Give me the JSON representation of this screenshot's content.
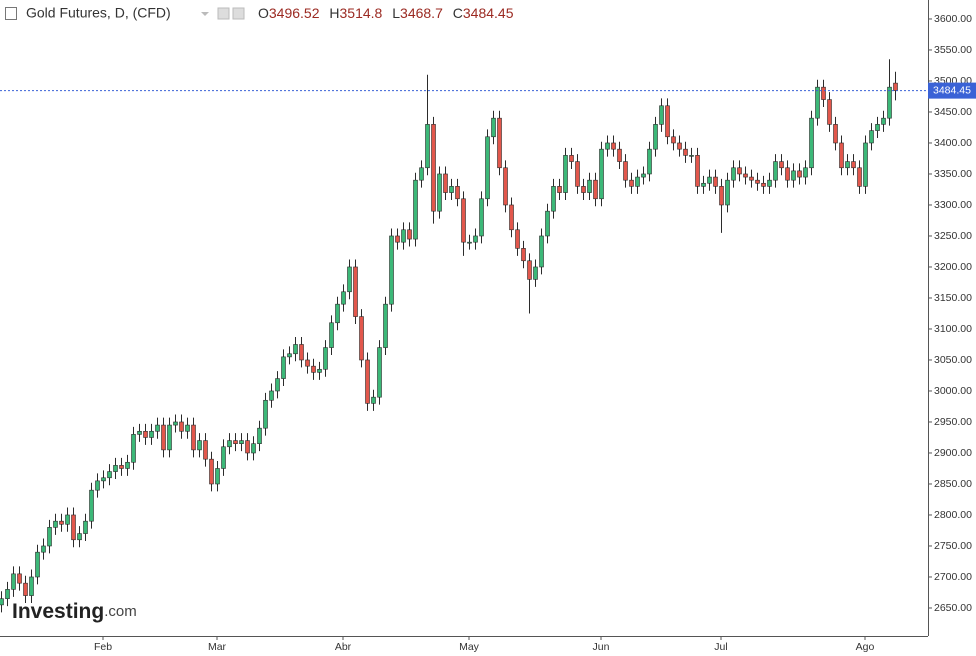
{
  "chart_data": {
    "type": "candlestick",
    "title": "Gold Futures, D, (CFD)",
    "ohlc_letters": [
      "O",
      "H",
      "L",
      "C"
    ],
    "categories": [
      null,
      null,
      null,
      null,
      null,
      null,
      null,
      null,
      null,
      null,
      null,
      null,
      null,
      null,
      null,
      null,
      null,
      "Feb",
      null,
      null,
      null,
      null,
      null,
      null,
      null,
      null,
      null,
      null,
      null,
      null,
      null,
      null,
      null,
      null,
      null,
      null,
      "Mar",
      null,
      null,
      null,
      null,
      null,
      null,
      null,
      null,
      null,
      null,
      null,
      null,
      null,
      null,
      null,
      null,
      null,
      null,
      null,
      null,
      "Abr",
      null,
      null,
      null,
      null,
      null,
      null,
      null,
      null,
      null,
      null,
      null,
      null,
      null,
      null,
      null,
      null,
      null,
      null,
      null,
      null,
      "May",
      null,
      null,
      null,
      null,
      null,
      null,
      null,
      null,
      null,
      null,
      null,
      null,
      null,
      null,
      null,
      null,
      null,
      null,
      null,
      null,
      null,
      "Jun",
      null,
      null,
      null,
      null,
      null,
      null,
      null,
      null,
      null,
      null,
      null,
      null,
      null,
      null,
      null,
      null,
      null,
      null,
      null,
      "Jul",
      null,
      null,
      null,
      null,
      null,
      null,
      null,
      null,
      null,
      null,
      null,
      null,
      null,
      null,
      null,
      null,
      null,
      null,
      null,
      null,
      null,
      null,
      null,
      "Ago",
      null,
      null,
      null,
      null,
      null
    ],
    "open": [
      2655,
      2665,
      2680,
      2705,
      2690,
      2670,
      2700,
      2740,
      2750,
      2780,
      2790,
      2785,
      2800,
      2760,
      2770,
      2790,
      2840,
      2855,
      2860,
      2870,
      2880,
      2875,
      2885,
      2930,
      2935,
      2925,
      2935,
      2945,
      2905,
      2945,
      2950,
      2935,
      2945,
      2905,
      2920,
      2890,
      2850,
      2875,
      2910,
      2920,
      2915,
      2920,
      2900,
      2915,
      2940,
      2985,
      3000,
      3020,
      3055,
      3060,
      3075,
      3050,
      3040,
      3030,
      3035,
      3070,
      3110,
      3140,
      3160,
      3200,
      3120,
      3050,
      2980,
      2990,
      3070,
      3140,
      3250,
      3240,
      3260,
      3245,
      3340,
      3360,
      3430,
      3290,
      3350,
      3320,
      3330,
      3310,
      3240,
      3240,
      3250,
      3310,
      3410,
      3440,
      3360,
      3300,
      3260,
      3230,
      3210,
      3180,
      3200,
      3250,
      3290,
      3330,
      3320,
      3380,
      3370,
      3330,
      3320,
      3340,
      3310,
      3390,
      3400,
      3390,
      3370,
      3340,
      3330,
      3345,
      3350,
      3390,
      3430,
      3460,
      3410,
      3400,
      3390,
      3380,
      3380,
      3330,
      3335,
      3345,
      3330,
      3300,
      3340,
      3360,
      3350,
      3345,
      3340,
      3335,
      3330,
      3340,
      3370,
      3360,
      3340,
      3355,
      3345,
      3360,
      3440,
      3490,
      3470,
      3430,
      3400,
      3360,
      3370,
      3360,
      3330,
      3400,
      3420,
      3430,
      3440,
      3496.52
    ],
    "high": [
      2677,
      2692,
      2717,
      2717,
      2702,
      2712,
      2752,
      2762,
      2792,
      2802,
      2802,
      2812,
      2812,
      2782,
      2802,
      2852,
      2867,
      2872,
      2882,
      2892,
      2892,
      2897,
      2942,
      2947,
      2947,
      2947,
      2957,
      2957,
      2957,
      2962,
      2962,
      2957,
      2957,
      2932,
      2932,
      2902,
      2887,
      2922,
      2932,
      2932,
      2932,
      2932,
      2927,
      2952,
      2997,
      3012,
      3032,
      3067,
      3072,
      3087,
      3087,
      3062,
      3052,
      3047,
      3082,
      3122,
      3152,
      3172,
      3212,
      3212,
      3132,
      3062,
      3002,
      3082,
      3152,
      3262,
      3262,
      3272,
      3272,
      3352,
      3372,
      3510,
      3442,
      3362,
      3362,
      3342,
      3342,
      3322,
      3252,
      3262,
      3322,
      3422,
      3452,
      3452,
      3372,
      3312,
      3272,
      3242,
      3222,
      3212,
      3262,
      3302,
      3342,
      3342,
      3392,
      3392,
      3382,
      3342,
      3352,
      3352,
      3402,
      3412,
      3412,
      3402,
      3382,
      3352,
      3357,
      3362,
      3402,
      3442,
      3472,
      3472,
      3422,
      3412,
      3402,
      3392,
      3392,
      3347,
      3357,
      3357,
      3342,
      3352,
      3372,
      3372,
      3362,
      3357,
      3352,
      3347,
      3352,
      3382,
      3382,
      3372,
      3367,
      3367,
      3372,
      3452,
      3502,
      3502,
      3482,
      3442,
      3412,
      3382,
      3382,
      3372,
      3412,
      3432,
      3442,
      3452,
      3535,
      3514.8
    ],
    "low": [
      2643,
      2653,
      2668,
      2678,
      2658,
      2658,
      2688,
      2728,
      2738,
      2768,
      2773,
      2773,
      2748,
      2748,
      2758,
      2778,
      2828,
      2843,
      2848,
      2858,
      2863,
      2863,
      2873,
      2918,
      2913,
      2913,
      2923,
      2893,
      2893,
      2933,
      2923,
      2923,
      2893,
      2893,
      2878,
      2838,
      2838,
      2863,
      2898,
      2903,
      2903,
      2888,
      2888,
      2903,
      2928,
      2973,
      2988,
      3008,
      3043,
      3048,
      3038,
      3028,
      3018,
      3018,
      3023,
      3058,
      3098,
      3128,
      3148,
      3108,
      3038,
      2968,
      2968,
      2978,
      3058,
      3128,
      3228,
      3228,
      3233,
      3233,
      3328,
      3348,
      3270,
      3278,
      3308,
      3308,
      3298,
      3218,
      3228,
      3228,
      3238,
      3298,
      3398,
      3348,
      3288,
      3248,
      3218,
      3198,
      3125,
      3168,
      3188,
      3238,
      3278,
      3308,
      3308,
      3358,
      3318,
      3308,
      3308,
      3298,
      3298,
      3378,
      3378,
      3358,
      3328,
      3318,
      3318,
      3333,
      3338,
      3378,
      3418,
      3398,
      3388,
      3378,
      3368,
      3368,
      3318,
      3318,
      3323,
      3318,
      3255,
      3288,
      3328,
      3338,
      3333,
      3328,
      3323,
      3318,
      3318,
      3328,
      3348,
      3328,
      3328,
      3333,
      3333,
      3348,
      3428,
      3458,
      3418,
      3388,
      3348,
      3348,
      3348,
      3318,
      3318,
      3388,
      3408,
      3418,
      3428,
      3468.7
    ],
    "close": [
      2665,
      2680,
      2705,
      2690,
      2670,
      2700,
      2740,
      2750,
      2780,
      2790,
      2785,
      2800,
      2760,
      2770,
      2790,
      2840,
      2855,
      2860,
      2870,
      2880,
      2875,
      2885,
      2930,
      2935,
      2925,
      2935,
      2945,
      2905,
      2945,
      2950,
      2935,
      2945,
      2905,
      2920,
      2890,
      2850,
      2875,
      2910,
      2920,
      2915,
      2920,
      2900,
      2915,
      2940,
      2985,
      3000,
      3020,
      3055,
      3060,
      3075,
      3050,
      3040,
      3030,
      3035,
      3070,
      3110,
      3140,
      3160,
      3200,
      3120,
      3050,
      2980,
      2990,
      3070,
      3140,
      3250,
      3240,
      3260,
      3245,
      3340,
      3360,
      3430,
      3290,
      3350,
      3320,
      3330,
      3310,
      3240,
      3240,
      3250,
      3310,
      3410,
      3440,
      3360,
      3300,
      3260,
      3230,
      3210,
      3180,
      3200,
      3250,
      3290,
      3330,
      3320,
      3380,
      3370,
      3330,
      3320,
      3340,
      3310,
      3390,
      3400,
      3390,
      3370,
      3340,
      3330,
      3345,
      3350,
      3390,
      3430,
      3460,
      3410,
      3400,
      3390,
      3380,
      3380,
      3330,
      3335,
      3345,
      3330,
      3300,
      3340,
      3360,
      3350,
      3345,
      3340,
      3335,
      3330,
      3340,
      3370,
      3360,
      3340,
      3355,
      3345,
      3360,
      3440,
      3490,
      3470,
      3430,
      3400,
      3360,
      3370,
      3360,
      3330,
      3400,
      3420,
      3430,
      3440,
      3490,
      3484.45
    ],
    "up_color": "#3cb878",
    "down_color": "#e2574c",
    "last_price_color": "#3a62d6",
    "ylim": [
      2604.8,
      3630.6
    ],
    "yticks": [
      {
        "value": 2650,
        "label": "2650.00"
      },
      {
        "value": 2700,
        "label": "2700.00"
      },
      {
        "value": 2750,
        "label": "2750.00"
      },
      {
        "value": 2800,
        "label": "2800.00"
      },
      {
        "value": 2850,
        "label": "2850.00"
      },
      {
        "value": 2900,
        "label": "2900.00"
      },
      {
        "value": 2950,
        "label": "2950.00"
      },
      {
        "value": 3000,
        "label": "3000.00"
      },
      {
        "value": 3050,
        "label": "3050.00"
      },
      {
        "value": 3100,
        "label": "3100.00"
      },
      {
        "value": 3150,
        "label": "3150.00"
      },
      {
        "value": 3200,
        "label": "3200.00"
      },
      {
        "value": 3250,
        "label": "3250.00"
      },
      {
        "value": 3300,
        "label": "3300.00"
      },
      {
        "value": 3350,
        "label": "3350.00"
      },
      {
        "value": 3400,
        "label": "3400.00"
      },
      {
        "value": 3450,
        "label": "3450.00"
      },
      {
        "value": 3500,
        "label": "3500.00"
      },
      {
        "value": 3550,
        "label": "3550.00"
      },
      {
        "value": 3600,
        "label": "3600.00"
      }
    ]
  },
  "logo": {
    "name": "Investing",
    "suffix": ".com"
  }
}
